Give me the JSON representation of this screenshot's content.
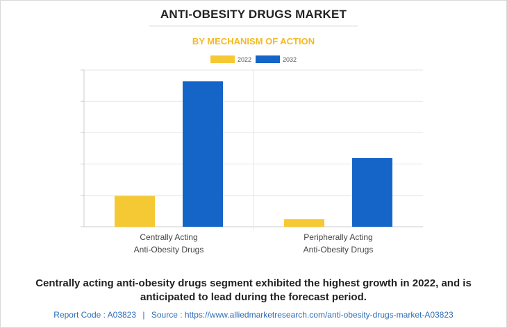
{
  "title": "ANTI-OBESITY DRUGS MARKET",
  "subtitle": "BY MECHANISM OF ACTION",
  "caption": "Centrally acting anti-obesity drugs segment exhibited the highest growth in 2022, and is anticipated to lead during the forecast period.",
  "footer": {
    "report_code": "Report Code : A03823",
    "separator": "|",
    "source": "Source : https://www.alliedmarketresearch.com/anti-obesity-drugs-market-A03823"
  },
  "colors": {
    "series_2022": "#f5c933",
    "series_2032": "#1565c8",
    "grid": "#e6e6e6",
    "axis": "#cccccc"
  },
  "chart_data": {
    "type": "bar",
    "title": "BY MECHANISM OF ACTION",
    "categories": [
      [
        "Centrally Acting",
        "Anti-Obesity Drugs"
      ],
      [
        "Peripherally Acting",
        "Anti-Obesity Drugs"
      ]
    ],
    "series": [
      {
        "name": "2022",
        "values": [
          0.98,
          0.24
        ]
      },
      {
        "name": "2032",
        "values": [
          4.64,
          2.19
        ]
      }
    ],
    "ylim": [
      0,
      5
    ],
    "y_ticks": [
      0,
      1,
      2,
      3,
      4,
      5
    ],
    "y_tick_labels_shown": false,
    "grid": true,
    "legend_position": "top-center"
  }
}
